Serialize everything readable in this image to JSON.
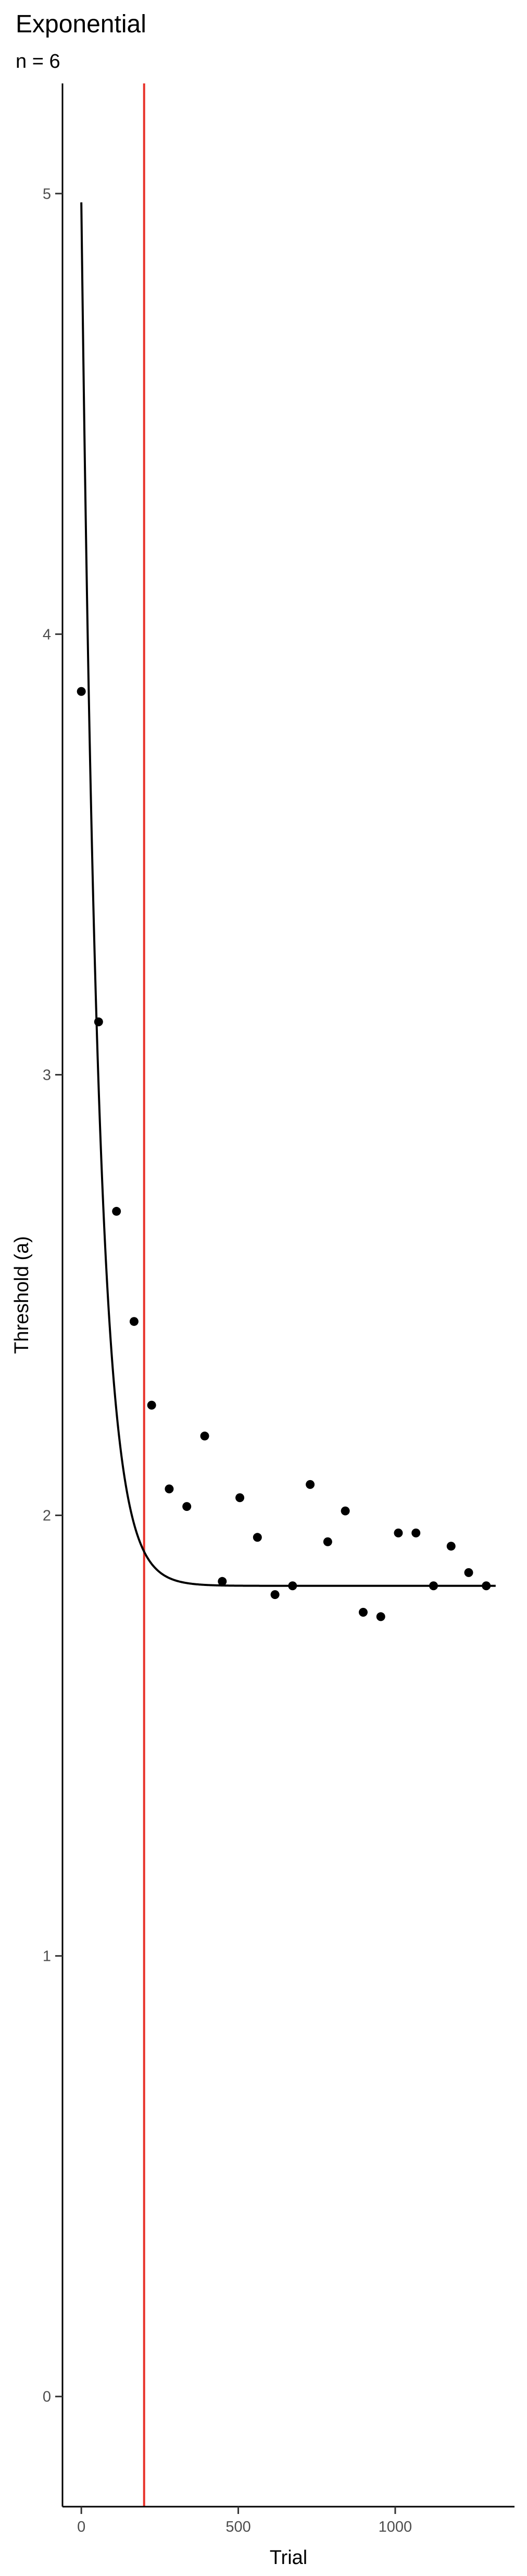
{
  "chart_data": {
    "type": "scatter",
    "title": "Exponential",
    "subtitle": "n = 6",
    "xlabel": "Trial",
    "ylabel": "Threshold (a)",
    "xlim": [
      -60,
      1380
    ],
    "ylim": [
      -0.25,
      5.25
    ],
    "x_ticks": [
      0,
      500,
      1000
    ],
    "x_tick_labels": [
      "0",
      "500",
      "1000"
    ],
    "y_ticks": [
      0,
      1,
      2,
      3,
      4,
      5
    ],
    "y_tick_labels": [
      "0",
      "1",
      "2",
      "3",
      "4",
      "5"
    ],
    "grid": false,
    "legend": "none",
    "vline": {
      "x": 200,
      "color": "#e8322a"
    },
    "fit_curve": {
      "model": "exponential",
      "asymptote": 1.84,
      "start": 4.98,
      "rate": 0.0185,
      "x_range": [
        0,
        1320
      ],
      "color": "#000000"
    },
    "points": {
      "color": "#000000",
      "x": [
        0,
        55,
        112,
        168,
        224,
        280,
        336,
        393,
        449,
        505,
        561,
        617,
        673,
        729,
        785,
        841,
        898,
        954,
        1010,
        1066,
        1122,
        1178,
        1234,
        1290
      ],
      "y": [
        3.87,
        3.12,
        2.69,
        2.44,
        2.25,
        2.06,
        2.02,
        2.18,
        1.85,
        2.04,
        1.95,
        1.82,
        1.84,
        2.07,
        1.94,
        2.01,
        1.78,
        1.77,
        1.96,
        1.96,
        1.84,
        1.93,
        1.87,
        1.84
      ]
    }
  }
}
